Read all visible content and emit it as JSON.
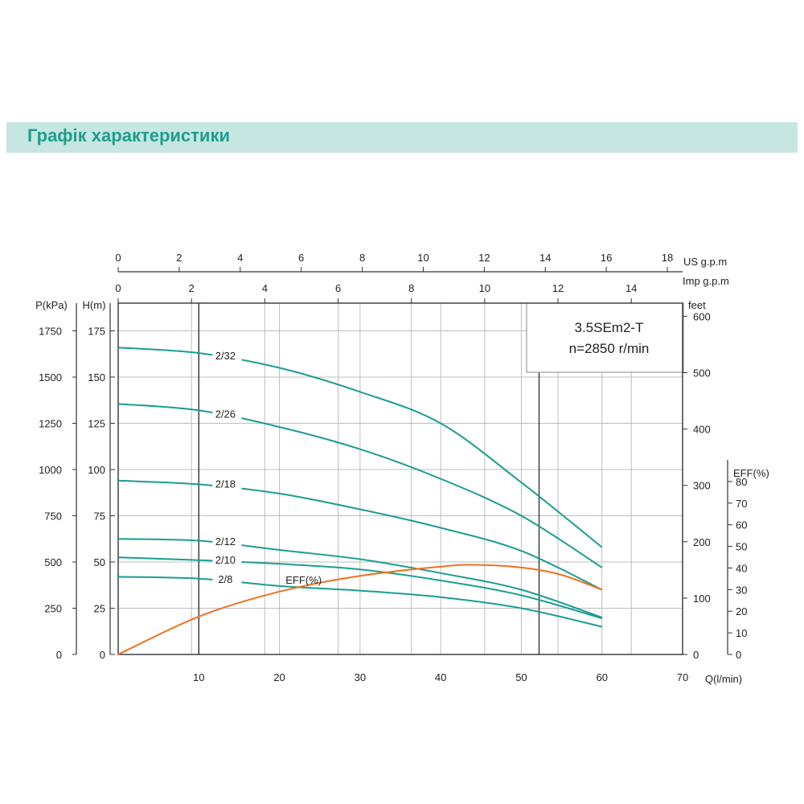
{
  "page": {
    "title": "Графік характеристики"
  },
  "colors": {
    "banner_bg": "#c6e6e2",
    "title": "#1f9e8c",
    "head_curves": "#1a9e92",
    "eff_curve": "#ef7121",
    "grid": "#bdbdbd",
    "axis": "#333333"
  },
  "chart_data": {
    "type": "line",
    "model_box": {
      "line1": "3.5SEm2-T",
      "line2": "n=2850 r/min"
    },
    "x_axis": {
      "label": "Q(l/min)",
      "range": [
        0,
        70
      ],
      "ticks": [
        "10",
        "20",
        "30",
        "40",
        "50",
        "60",
        "70"
      ],
      "tick_values": [
        10,
        20,
        30,
        40,
        50,
        60,
        70
      ]
    },
    "top_axis_us": {
      "label": "US g.p.m",
      "range": [
        0,
        18.5
      ],
      "ticks": [
        "0",
        "2",
        "4",
        "6",
        "8",
        "10",
        "12",
        "14",
        "16",
        "18"
      ],
      "tick_values": [
        0,
        2,
        4,
        6,
        8,
        10,
        12,
        14,
        16,
        18
      ]
    },
    "top_axis_imp": {
      "label": "Imp g.p.m",
      "range": [
        0,
        15.4
      ],
      "ticks": [
        "0",
        "2",
        "4",
        "6",
        "8",
        "10",
        "12",
        "14"
      ],
      "tick_values": [
        0,
        2,
        4,
        6,
        8,
        10,
        12,
        14
      ]
    },
    "y_axis_head": {
      "label": "H(m)",
      "range": [
        0,
        190
      ],
      "ticks": [
        "0",
        "25",
        "50",
        "75",
        "100",
        "125",
        "150",
        "175"
      ],
      "tick_values": [
        0,
        25,
        50,
        75,
        100,
        125,
        150,
        175
      ]
    },
    "y_axis_pressure": {
      "label": "P(kPa)",
      "ticks": [
        "0",
        "250",
        "500",
        "750",
        "1000",
        "1250",
        "1500",
        "1750"
      ],
      "tick_values": [
        0,
        25,
        50,
        75,
        100,
        125,
        150,
        175
      ]
    },
    "y_axis_feet": {
      "label": "feet",
      "ticks": [
        "0",
        "100",
        "200",
        "300",
        "400",
        "500",
        "600"
      ],
      "tick_values": [
        0,
        30.48,
        60.96,
        91.44,
        121.92,
        152.4,
        182.88
      ]
    },
    "y_axis_eff": {
      "label": "EFF(%)",
      "range": [
        0,
        90
      ],
      "ticks": [
        "0",
        "10",
        "20",
        "30",
        "40",
        "50",
        "60",
        "70",
        "80"
      ],
      "tick_values": [
        0,
        10,
        20,
        30,
        40,
        50,
        60,
        70,
        80
      ]
    },
    "vertical_markers": [
      10,
      52.2
    ],
    "series": [
      {
        "name": "2/32",
        "label_x": 13.5,
        "label_y": 160.5,
        "x": [
          0,
          10,
          20,
          30,
          40,
          50,
          60
        ],
        "y": [
          166,
          163,
          155,
          142,
          125,
          93,
          58
        ]
      },
      {
        "name": "2/26",
        "label_x": 13.5,
        "label_y": 129,
        "x": [
          0,
          10,
          20,
          30,
          40,
          50,
          60
        ],
        "y": [
          135.5,
          132,
          123,
          111,
          95,
          75,
          47
        ]
      },
      {
        "name": "2/18",
        "label_x": 13.5,
        "label_y": 91,
        "x": [
          0,
          10,
          20,
          30,
          40,
          50,
          60
        ],
        "y": [
          94,
          92,
          87,
          78.5,
          68.5,
          56,
          35
        ]
      },
      {
        "name": "2/12",
        "label_x": 13.5,
        "label_y": 60,
        "x": [
          0,
          10,
          20,
          30,
          40,
          50,
          60
        ],
        "y": [
          62.5,
          61.5,
          56.5,
          51.5,
          44,
          35,
          20
        ]
      },
      {
        "name": "2/10",
        "label_x": 13.5,
        "label_y": 50,
        "x": [
          0,
          10,
          20,
          30,
          40,
          50,
          60
        ],
        "y": [
          52.5,
          51,
          49,
          46,
          40,
          32,
          19.5
        ]
      },
      {
        "name": "2/8",
        "label_x": 13.5,
        "label_y": 39.5,
        "x": [
          0,
          10,
          20,
          30,
          40,
          50,
          60
        ],
        "y": [
          42,
          41,
          37,
          34.5,
          31,
          25,
          15
        ]
      }
    ],
    "efficiency": {
      "name": "EFF(%)",
      "label_x": 23,
      "label_y": 40.5,
      "x": [
        0,
        10,
        20,
        30,
        40,
        44,
        50,
        55,
        60
      ],
      "y": [
        0,
        20.5,
        34,
        42.5,
        47.5,
        48.5,
        47,
        43,
        35
      ]
    }
  }
}
